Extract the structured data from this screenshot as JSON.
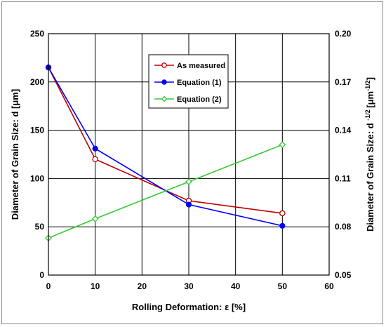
{
  "chart_data": {
    "type": "line",
    "xlabel": "Rolling Deformation: ε [%]",
    "ylabel": "Diameter of Grain Size: d [μm]",
    "ylabel_right": "Diameter of Grain Size: d -1/2 [μm-1/2]",
    "xlim": [
      0,
      60
    ],
    "ylim": [
      0,
      250
    ],
    "ylim_right": [
      0.05,
      0.2
    ],
    "x_ticks": [
      "0",
      "10",
      "20",
      "30",
      "40",
      "50",
      "60"
    ],
    "y_ticks": [
      "0",
      "50",
      "100",
      "150",
      "200",
      "250"
    ],
    "y_ticks_right": [
      "0.05",
      "0.08",
      "0.11",
      "0.14",
      "0.17",
      "0.20"
    ],
    "grid": true,
    "legend_position": "top-center",
    "series": [
      {
        "name": "As measured",
        "axis": "left",
        "marker": "open-circle",
        "color": "#c00000",
        "x": [
          0,
          10,
          30,
          50
        ],
        "y": [
          215,
          120,
          77,
          64
        ]
      },
      {
        "name": "Equation (1)",
        "axis": "left",
        "marker": "filled-circle",
        "color": "#0000ff",
        "x": [
          0,
          10,
          30,
          50
        ],
        "y": [
          215,
          131,
          73,
          51
        ]
      },
      {
        "name": "Equation (2)",
        "axis": "right",
        "marker": "open-diamond",
        "color": "#33cc33",
        "x": [
          0,
          10,
          30,
          50
        ],
        "y": [
          0.073,
          0.085,
          0.108,
          0.131
        ]
      }
    ]
  }
}
